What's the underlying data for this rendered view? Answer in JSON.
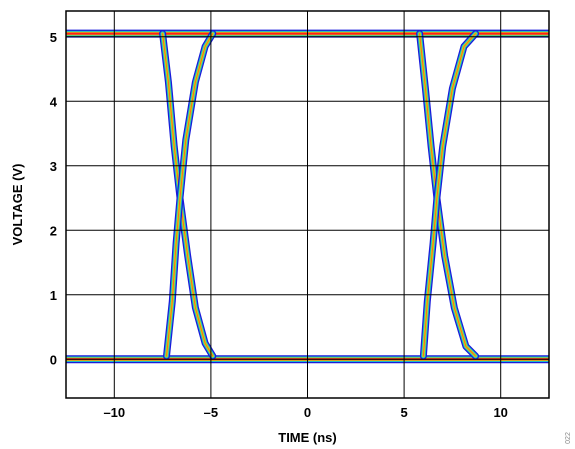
{
  "chart_data": {
    "type": "line",
    "title": "",
    "xlabel": "TIME (ns)",
    "ylabel": "VOLTAGE (V)",
    "xlim": [
      -12.5,
      12.5
    ],
    "ylim": [
      -0.6,
      5.4
    ],
    "x_ticks": [
      -10,
      -5,
      0,
      5,
      10
    ],
    "x_tick_labels": [
      "–10",
      "–5",
      "0",
      "5",
      "10"
    ],
    "y_ticks": [
      0,
      1,
      2,
      3,
      4,
      5
    ],
    "y_tick_labels": [
      "0",
      "1",
      "2",
      "3",
      "4",
      "5"
    ],
    "grid": true,
    "legend": "none",
    "figure_id": "022",
    "description_of_plot": "eye diagram",
    "levels": {
      "high": 5.05,
      "low": 0.0
    },
    "edges": [
      {
        "kind": "falling",
        "x": [
          -7.5,
          -7.2,
          -6.9,
          -6.6,
          -6.2,
          -5.8,
          -5.3,
          -4.9
        ],
        "y": [
          5.05,
          4.3,
          3.3,
          2.5,
          1.6,
          0.8,
          0.25,
          0.05
        ]
      },
      {
        "kind": "rising",
        "x": [
          -7.3,
          -7.0,
          -6.8,
          -6.6,
          -6.3,
          -5.8,
          -5.3,
          -4.9
        ],
        "y": [
          0.05,
          0.9,
          1.8,
          2.5,
          3.4,
          4.3,
          4.85,
          5.05
        ]
      },
      {
        "kind": "falling",
        "x": [
          5.8,
          6.1,
          6.4,
          6.7,
          7.1,
          7.6,
          8.2,
          8.7
        ],
        "y": [
          5.05,
          4.2,
          3.3,
          2.5,
          1.6,
          0.8,
          0.2,
          0.05
        ]
      },
      {
        "kind": "rising",
        "x": [
          6.0,
          6.2,
          6.5,
          6.7,
          7.0,
          7.5,
          8.1,
          8.7
        ],
        "y": [
          0.05,
          0.9,
          1.8,
          2.5,
          3.3,
          4.2,
          4.85,
          5.05
        ]
      }
    ],
    "colors": {
      "outer": "#1a1adb",
      "mid": "#1fc0c0",
      "inner": "#c6e014",
      "core": "#ff6a1a",
      "hot": "#ff1e1e"
    }
  }
}
